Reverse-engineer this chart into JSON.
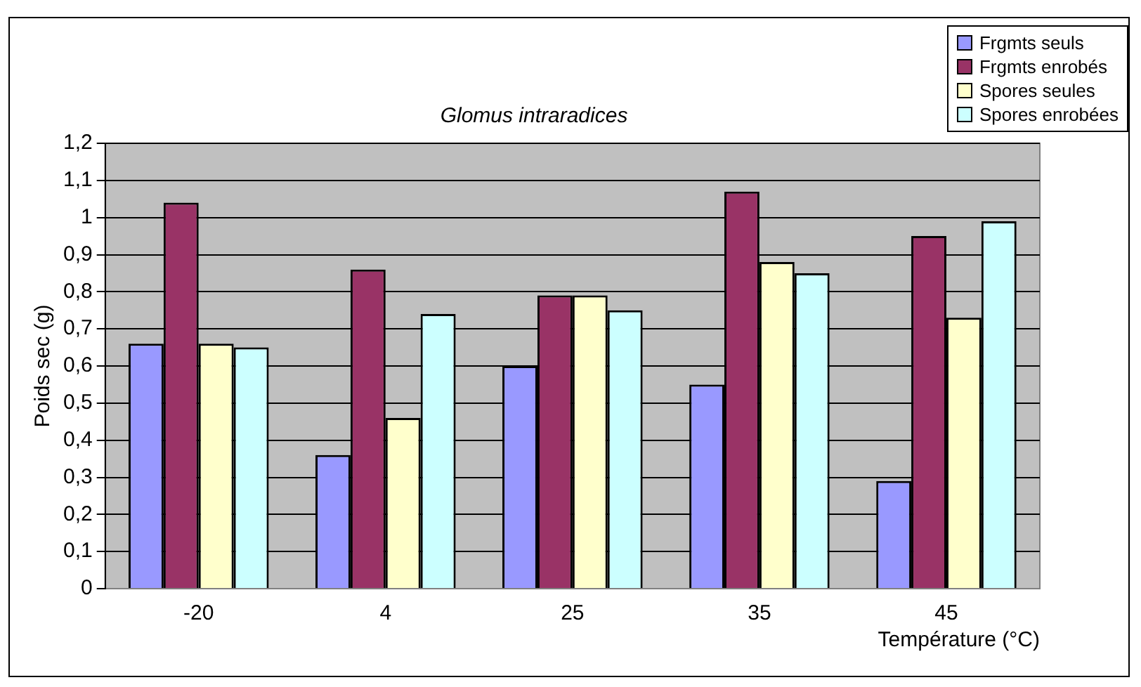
{
  "chart_data": {
    "type": "bar",
    "title": "Glomus intraradices",
    "xlabel": "Température (°C)",
    "ylabel": "Poids sec (g)",
    "categories": [
      "-20",
      "4",
      "25",
      "35",
      "45"
    ],
    "series": [
      {
        "name": "Frgmts seuls",
        "color": "#9999ff",
        "values": [
          0.66,
          0.36,
          0.6,
          0.55,
          0.29
        ]
      },
      {
        "name": "Frgmts enrobés",
        "color": "#993366",
        "values": [
          1.04,
          0.86,
          0.79,
          1.07,
          0.95
        ]
      },
      {
        "name": "Spores seules",
        "color": "#ffffcc",
        "values": [
          0.66,
          0.46,
          0.79,
          0.88,
          0.73
        ]
      },
      {
        "name": "Spores enrobées",
        "color": "#ccffff",
        "values": [
          0.65,
          0.74,
          0.75,
          0.85,
          0.99
        ]
      }
    ],
    "ylim": [
      0,
      1.2
    ],
    "yticks": [
      0,
      {
        "value": 0.1,
        "label": "0,1"
      },
      {
        "value": 0.2,
        "label": "0,2"
      },
      {
        "value": 0.3,
        "label": "0,3"
      },
      {
        "value": 0.4,
        "label": "0,4"
      },
      {
        "value": 0.5,
        "label": "0,5"
      },
      {
        "value": 0.6,
        "label": "0,6"
      },
      {
        "value": 0.7,
        "label": "0,7"
      },
      {
        "value": 0.8,
        "label": "0,8"
      },
      {
        "value": 0.9,
        "label": "0,9"
      },
      1,
      {
        "value": 1.1,
        "label": "1,1"
      },
      {
        "value": 1.2,
        "label": "1,2"
      }
    ],
    "grid": "y",
    "legend": "top right"
  }
}
